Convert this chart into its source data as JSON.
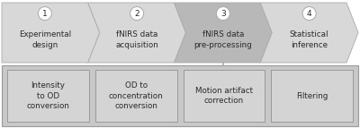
{
  "bg_white": "#ffffff",
  "chevron_light": "#d8d8d8",
  "chevron_dark": "#b8b8b8",
  "panel_bg": "#c8c8c8",
  "box_fill": "#d4d4d4",
  "box_edge": "#999999",
  "circle_fill": "#ffffff",
  "circle_edge": "#aaaaaa",
  "text_dark": "#2a2a2a",
  "arrow_labels": [
    "Experimental\ndesign",
    "fNIRS data\nacquisition",
    "fNIRS data\npre-processing",
    "Statistical\ninference"
  ],
  "step_numbers": [
    "1",
    "2",
    "3",
    "4"
  ],
  "box_labels": [
    "Intensity\nto OD\nconversion",
    "OD to\nconcentration\nconversion",
    "Motion artifact\ncorrection",
    "Filtering"
  ],
  "fig_w": 4.0,
  "fig_h": 1.43,
  "dpi": 100
}
